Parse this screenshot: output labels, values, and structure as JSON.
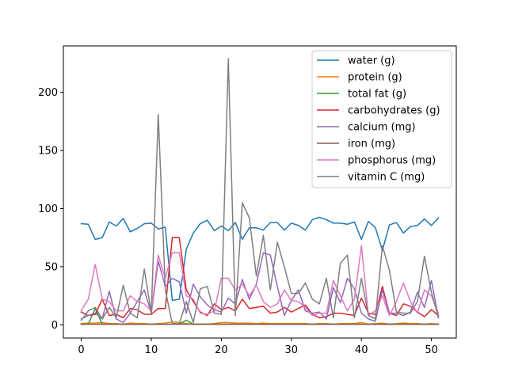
{
  "chart_data": {
    "type": "line",
    "title": "",
    "xlabel": "",
    "ylabel": "",
    "xlim": [
      -2.55,
      53.55
    ],
    "ylim": [
      -11.4,
      240.0
    ],
    "xticks": [
      0,
      10,
      20,
      30,
      40,
      50
    ],
    "yticks": [
      0,
      50,
      100,
      150,
      200
    ],
    "legend_position": "top-right",
    "x": [
      0,
      1,
      2,
      3,
      4,
      5,
      6,
      7,
      8,
      9,
      10,
      11,
      12,
      13,
      14,
      15,
      16,
      17,
      18,
      19,
      20,
      21,
      22,
      23,
      24,
      25,
      26,
      27,
      28,
      29,
      30,
      31,
      32,
      33,
      34,
      35,
      36,
      37,
      38,
      39,
      40,
      41,
      42,
      43,
      44,
      45,
      46,
      47,
      48,
      49,
      50,
      51
    ],
    "series": [
      {
        "name": "water (g)",
        "color": "#1f77b4",
        "values": [
          87,
          86.5,
          73.5,
          75,
          88.5,
          85,
          91.5,
          80,
          83,
          87,
          87.5,
          82.5,
          84,
          21,
          22,
          65,
          79,
          87,
          90,
          81,
          85,
          81,
          88,
          73.5,
          83.5,
          83.5,
          81.5,
          88,
          88,
          81.5,
          87.5,
          85.5,
          81.5,
          90.5,
          92.5,
          90.5,
          87.5,
          87.5,
          86.5,
          88.5,
          73.5,
          89,
          83.5,
          64,
          86,
          88,
          79,
          84.5,
          85.5,
          91,
          85.5,
          92
        ]
      },
      {
        "name": "protein (g)",
        "color": "#ff7f0e",
        "values": [
          1,
          1.5,
          1.5,
          2,
          1,
          1,
          0.5,
          1.5,
          1,
          1,
          0.5,
          1,
          1.5,
          2.5,
          2,
          1,
          0.5,
          0.5,
          0.5,
          1,
          2,
          2,
          1.5,
          1.5,
          1.5,
          1,
          1.5,
          1,
          1,
          1,
          1,
          1,
          1,
          0.5,
          1,
          1,
          0.5,
          1,
          1,
          1,
          2,
          0.5,
          1,
          1.5,
          0.5,
          1,
          1.5,
          1,
          1,
          0.5,
          1,
          0.5
        ]
      },
      {
        "name": "total fat (g)",
        "color": "#2ca02c",
        "values": [
          0.5,
          0.5,
          14,
          0.5,
          0.5,
          0.5,
          0.5,
          0.5,
          0.5,
          0.5,
          0.5,
          0.5,
          0.5,
          0.5,
          0.5,
          4,
          0.5,
          0.5,
          0.5,
          0.5,
          0.5,
          0.5,
          0.5,
          0.5,
          0.5,
          0.5,
          0.5,
          0.5,
          0.5,
          0.5,
          0.5,
          0.5,
          0.5,
          0.5,
          0.5,
          0.5,
          0.5,
          0.5,
          0.5,
          0.5,
          0.5,
          0.5,
          0.5,
          0.5,
          0.5,
          0.5,
          0.5,
          0.5,
          0.5,
          0.5,
          0.5,
          0.5
        ]
      },
      {
        "name": "carbohydrates (g)",
        "color": "#d62728",
        "values": [
          11,
          8,
          9,
          22,
          8,
          9,
          6,
          14,
          13,
          9,
          9,
          14,
          14,
          75,
          75,
          30,
          20,
          11,
          8,
          18,
          13,
          15,
          12,
          22,
          14,
          15,
          16,
          10,
          11,
          15,
          11,
          14,
          17,
          9,
          6,
          7,
          10,
          10,
          9,
          8,
          23,
          10,
          9,
          33,
          10,
          8,
          18,
          16,
          11,
          7,
          13,
          8
        ]
      },
      {
        "name": "calcium (mg)",
        "color": "#9467bd",
        "values": [
          5,
          8,
          10,
          5,
          29,
          5,
          2,
          10,
          20,
          30,
          10,
          55,
          33,
          40,
          37,
          10,
          35,
          24,
          17,
          13,
          11,
          23,
          18,
          39,
          22,
          35,
          62,
          60,
          33,
          8,
          21,
          30,
          12,
          10,
          11,
          5,
          32,
          19,
          40,
          31,
          10,
          5,
          3,
          30,
          10,
          10,
          8,
          11,
          28,
          15,
          38,
          6
        ]
      },
      {
        "name": "iron (mg)",
        "color": "#8c564b",
        "values": [
          0.5,
          0.5,
          0.5,
          0.5,
          0.5,
          0.5,
          0.5,
          0.5,
          0.5,
          0.5,
          0.5,
          0.5,
          0.5,
          0.5,
          0.5,
          0.5,
          0.5,
          0.5,
          0.5,
          0.5,
          0.5,
          0.5,
          0.5,
          0.5,
          0.5,
          0.5,
          0.5,
          0.5,
          0.5,
          0.5,
          0.5,
          0.5,
          0.5,
          0.5,
          0.5,
          0.5,
          0.5,
          0.5,
          0.5,
          0.5,
          0.5,
          0.5,
          0.5,
          0.5,
          0.5,
          0.5,
          0.5,
          0.5,
          0.5,
          0.5,
          0.5,
          0.5
        ]
      },
      {
        "name": "phosphorus (mg)",
        "color": "#e377c2",
        "values": [
          12,
          22,
          52,
          22,
          20,
          12,
          12,
          25,
          20,
          18,
          12,
          60,
          40,
          62,
          62,
          25,
          22,
          10,
          9,
          12,
          40,
          40,
          30,
          35,
          25,
          34,
          20,
          15,
          18,
          30,
          21,
          20,
          15,
          8,
          10,
          10,
          38,
          25,
          12,
          22,
          68,
          8,
          12,
          25,
          8,
          20,
          36,
          20,
          10,
          30,
          25,
          10
        ]
      },
      {
        "name": "vitamin C (mg)",
        "color": "#7f7f7f",
        "values": [
          4,
          12,
          15,
          5,
          15,
          6,
          34,
          10,
          6,
          48,
          10,
          181,
          30,
          1,
          1,
          20,
          2,
          31,
          33,
          10,
          9,
          229,
          8,
          105,
          92,
          42,
          77,
          30,
          71,
          50,
          27,
          27,
          36,
          22,
          18,
          40,
          6,
          53,
          60,
          6,
          40,
          8,
          5,
          68,
          47,
          11,
          10,
          10,
          20,
          59,
          28,
          6
        ]
      }
    ]
  }
}
